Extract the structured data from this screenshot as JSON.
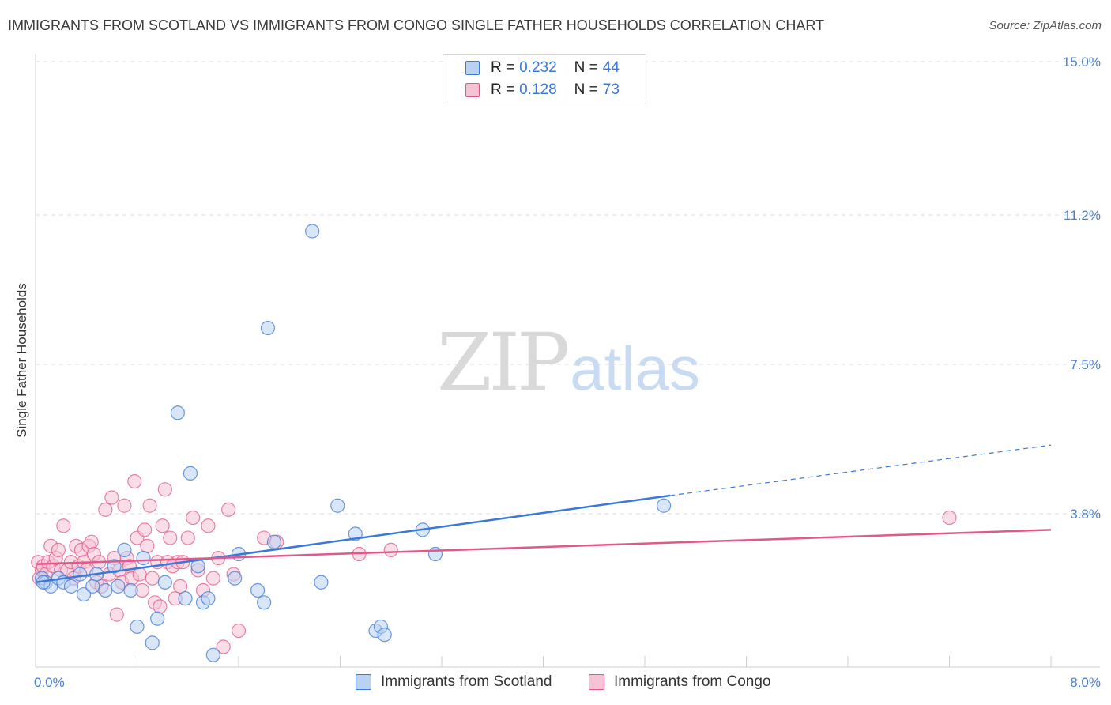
{
  "title": "IMMIGRANTS FROM SCOTLAND VS IMMIGRANTS FROM CONGO SINGLE FATHER HOUSEHOLDS CORRELATION CHART",
  "source": "Source: ZipAtlas.com",
  "watermark": {
    "zip": "ZIP",
    "atlas": "atlas"
  },
  "legend": {
    "scotland": {
      "r_label": "R =",
      "r_value": "0.232",
      "n_label": "N =",
      "n_value": "44"
    },
    "congo": {
      "r_label": "R =",
      "r_value": "0.128",
      "n_label": "N =",
      "n_value": "73"
    }
  },
  "chart_data": {
    "type": "scatter",
    "title": "IMMIGRANTS FROM SCOTLAND VS IMMIGRANTS FROM CONGO SINGLE FATHER HOUSEHOLDS CORRELATION CHART",
    "xlabel": "",
    "ylabel": "Single Father Households",
    "xlim": [
      0.0,
      8.0
    ],
    "ylim": [
      0.0,
      15.0
    ],
    "x_tick_labels": [
      "0.0%",
      "8.0%"
    ],
    "y_ticks": [
      3.8,
      7.5,
      11.2,
      15.0
    ],
    "y_tick_labels": [
      "3.8%",
      "7.5%",
      "11.2%",
      "15.0%"
    ],
    "legend_position": "bottom",
    "colors": {
      "scotland": "#3b78d8",
      "scotland_fill": "#b9d2f2",
      "congo": "#e2588a",
      "congo_fill": "#f6c3d4"
    },
    "series": [
      {
        "name": "Immigrants from Scotland",
        "r": 0.232,
        "n": 44,
        "trend": {
          "x0": 0.0,
          "y0": 2.1,
          "x1": 5.0,
          "y1": 4.25,
          "dash_to_x": 8.0,
          "dash_to_y": 5.5
        },
        "points": [
          [
            0.05,
            2.2
          ],
          [
            0.08,
            2.1
          ],
          [
            0.12,
            2.0
          ],
          [
            0.18,
            2.2
          ],
          [
            0.22,
            2.1
          ],
          [
            0.28,
            2.0
          ],
          [
            0.35,
            2.3
          ],
          [
            0.38,
            1.8
          ],
          [
            0.45,
            2.0
          ],
          [
            0.48,
            2.3
          ],
          [
            0.55,
            1.9
          ],
          [
            0.62,
            2.5
          ],
          [
            0.65,
            2.0
          ],
          [
            0.7,
            2.9
          ],
          [
            0.75,
            1.9
          ],
          [
            0.8,
            1.0
          ],
          [
            0.85,
            2.7
          ],
          [
            0.92,
            0.6
          ],
          [
            0.96,
            1.2
          ],
          [
            1.02,
            2.1
          ],
          [
            1.12,
            6.3
          ],
          [
            1.18,
            1.7
          ],
          [
            1.22,
            4.8
          ],
          [
            1.28,
            2.5
          ],
          [
            1.32,
            1.6
          ],
          [
            1.36,
            1.7
          ],
          [
            1.4,
            0.3
          ],
          [
            1.57,
            2.2
          ],
          [
            1.6,
            2.8
          ],
          [
            1.75,
            1.9
          ],
          [
            1.8,
            1.6
          ],
          [
            1.83,
            8.4
          ],
          [
            1.88,
            3.1
          ],
          [
            2.18,
            10.8
          ],
          [
            2.25,
            2.1
          ],
          [
            2.38,
            4.0
          ],
          [
            2.52,
            3.3
          ],
          [
            2.68,
            0.9
          ],
          [
            2.72,
            1.0
          ],
          [
            2.75,
            0.8
          ],
          [
            3.05,
            3.4
          ],
          [
            3.15,
            2.8
          ],
          [
            4.95,
            4.0
          ],
          [
            0.06,
            2.1
          ]
        ]
      },
      {
        "name": "Immigrants from Congo",
        "r": 0.128,
        "n": 73,
        "trend": {
          "x0": 0.0,
          "y0": 2.55,
          "x1": 8.0,
          "y1": 3.4
        },
        "points": [
          [
            0.02,
            2.6
          ],
          [
            0.03,
            2.2
          ],
          [
            0.05,
            2.4
          ],
          [
            0.06,
            2.5
          ],
          [
            0.08,
            2.3
          ],
          [
            0.1,
            2.6
          ],
          [
            0.12,
            3.0
          ],
          [
            0.14,
            2.5
          ],
          [
            0.16,
            2.7
          ],
          [
            0.18,
            2.9
          ],
          [
            0.2,
            2.4
          ],
          [
            0.22,
            3.5
          ],
          [
            0.25,
            2.4
          ],
          [
            0.28,
            2.6
          ],
          [
            0.3,
            2.2
          ],
          [
            0.32,
            3.0
          ],
          [
            0.34,
            2.5
          ],
          [
            0.36,
            2.9
          ],
          [
            0.38,
            2.6
          ],
          [
            0.4,
            2.4
          ],
          [
            0.42,
            3.0
          ],
          [
            0.44,
            3.1
          ],
          [
            0.46,
            2.8
          ],
          [
            0.48,
            2.1
          ],
          [
            0.5,
            2.6
          ],
          [
            0.52,
            2.0
          ],
          [
            0.55,
            3.9
          ],
          [
            0.58,
            2.3
          ],
          [
            0.6,
            4.2
          ],
          [
            0.62,
            2.7
          ],
          [
            0.64,
            1.3
          ],
          [
            0.66,
            2.4
          ],
          [
            0.68,
            2.1
          ],
          [
            0.7,
            4.0
          ],
          [
            0.72,
            2.7
          ],
          [
            0.74,
            2.5
          ],
          [
            0.76,
            2.2
          ],
          [
            0.78,
            4.6
          ],
          [
            0.8,
            3.2
          ],
          [
            0.82,
            2.3
          ],
          [
            0.84,
            1.9
          ],
          [
            0.86,
            3.4
          ],
          [
            0.88,
            3.0
          ],
          [
            0.9,
            4.0
          ],
          [
            0.92,
            2.2
          ],
          [
            0.94,
            1.6
          ],
          [
            0.96,
            2.6
          ],
          [
            0.98,
            1.5
          ],
          [
            1.0,
            3.5
          ],
          [
            1.02,
            4.4
          ],
          [
            1.04,
            2.6
          ],
          [
            1.06,
            3.2
          ],
          [
            1.08,
            2.5
          ],
          [
            1.1,
            1.7
          ],
          [
            1.12,
            2.6
          ],
          [
            1.14,
            2.0
          ],
          [
            1.16,
            2.6
          ],
          [
            1.2,
            3.2
          ],
          [
            1.24,
            3.7
          ],
          [
            1.28,
            2.4
          ],
          [
            1.32,
            1.9
          ],
          [
            1.36,
            3.5
          ],
          [
            1.4,
            2.2
          ],
          [
            1.44,
            2.7
          ],
          [
            1.48,
            0.5
          ],
          [
            1.52,
            3.9
          ],
          [
            1.56,
            2.3
          ],
          [
            1.6,
            0.9
          ],
          [
            1.8,
            3.2
          ],
          [
            1.9,
            3.1
          ],
          [
            2.55,
            2.8
          ],
          [
            2.8,
            2.9
          ],
          [
            7.2,
            3.7
          ]
        ]
      }
    ]
  },
  "bottom_legend": {
    "scotland": "Immigrants from Scotland",
    "congo": "Immigrants from Congo"
  }
}
